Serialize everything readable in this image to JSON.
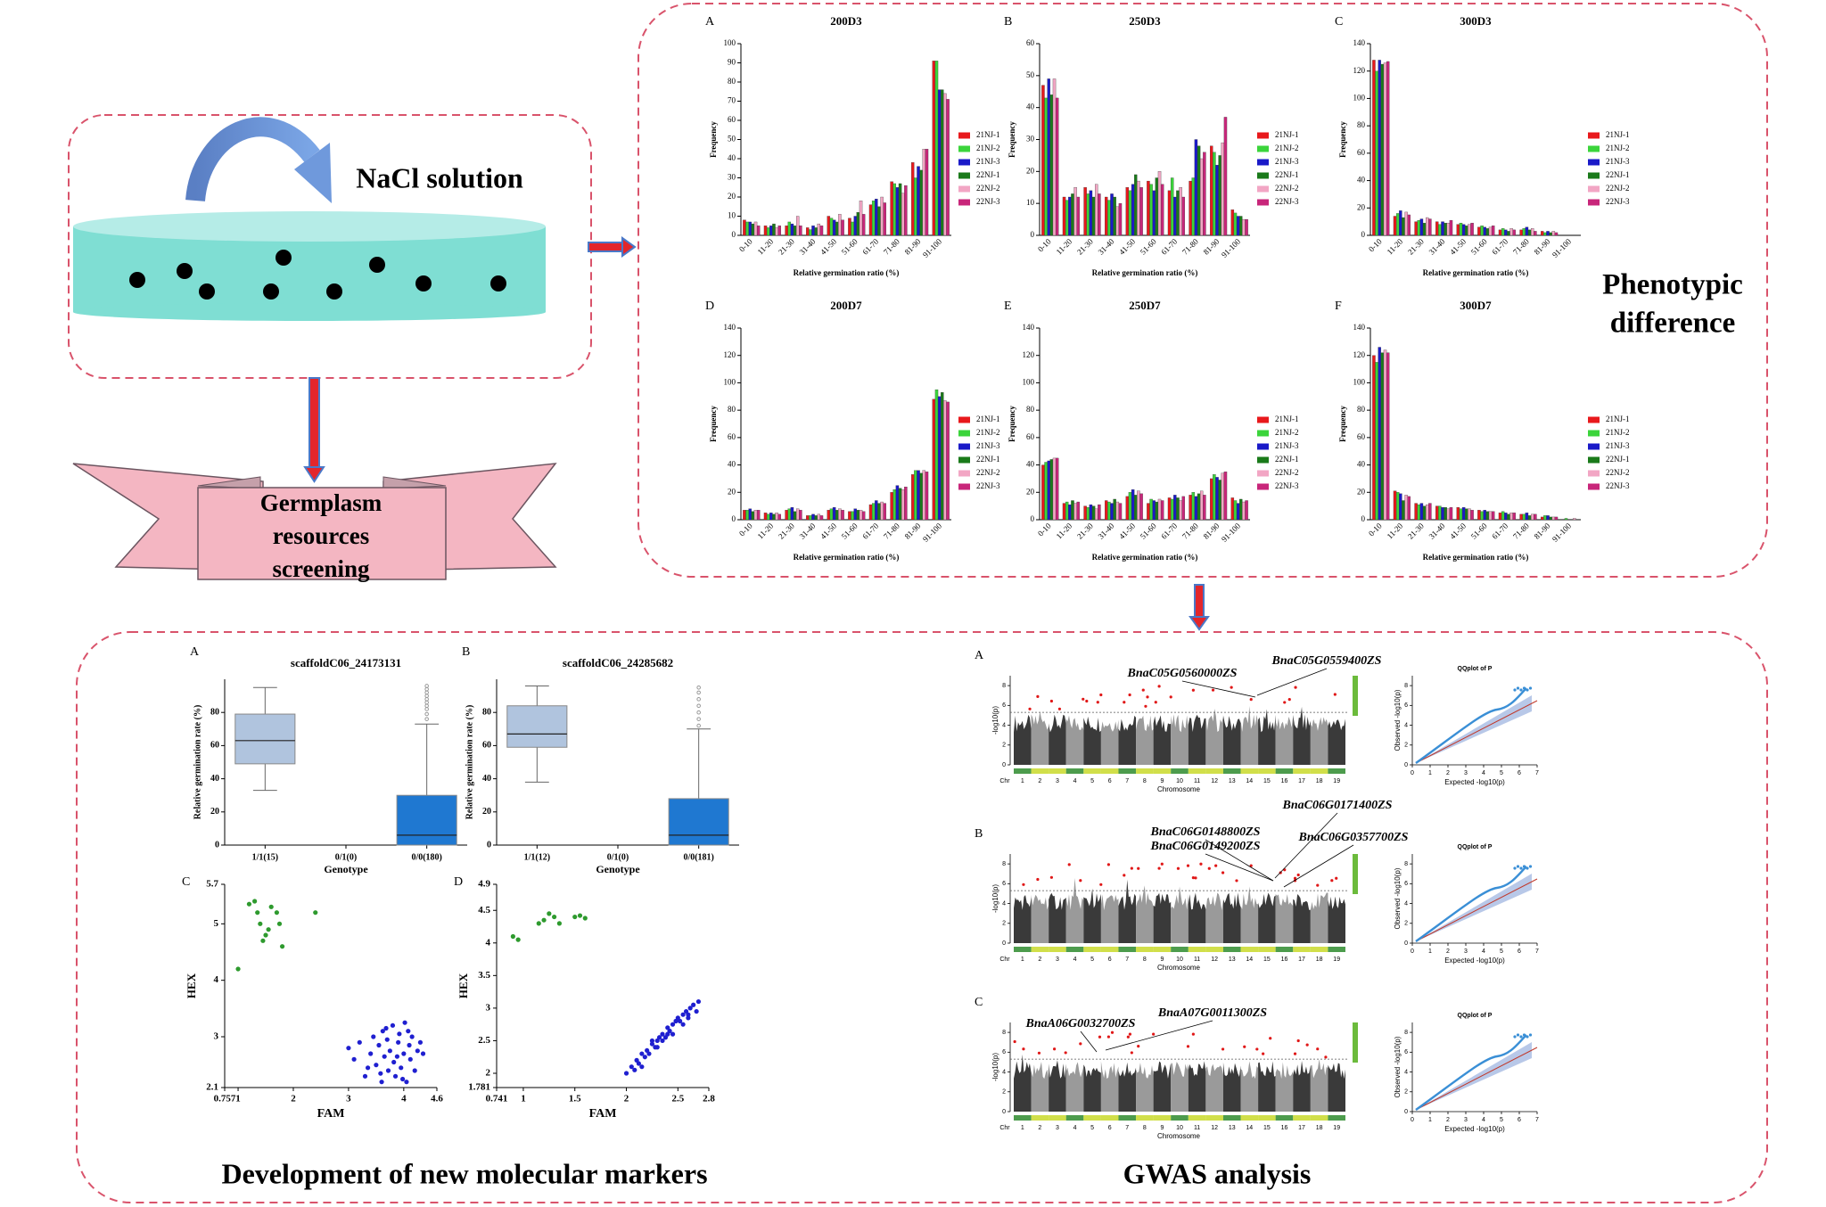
{
  "nacl_label": "NaCl solution",
  "germplasm_lines": [
    "Germplasm",
    "resources",
    "screening"
  ],
  "phenotypic": {
    "heading": [
      "Phenotypic",
      "difference"
    ],
    "x_label": "Relative germination ratio (%)",
    "y_label": "Frequency",
    "categories": [
      "0-10",
      "11-20",
      "21-30",
      "31-40",
      "41-50",
      "51-60",
      "61-70",
      "71-80",
      "81-90",
      "91-100"
    ],
    "legend": [
      {
        "name": "21NJ-1",
        "color": "#e8191c"
      },
      {
        "name": "21NJ-2",
        "color": "#3bd43b"
      },
      {
        "name": "21NJ-3",
        "color": "#1a1ac8"
      },
      {
        "name": "22NJ-1",
        "color": "#1a7a1a"
      },
      {
        "name": "22NJ-2",
        "color": "#f2a6c4"
      },
      {
        "name": "22NJ-3",
        "color": "#c8267a"
      }
    ],
    "panels": [
      {
        "letter": "A",
        "title": "200D3",
        "ylim": [
          0,
          100
        ],
        "yticks": [
          0,
          10,
          20,
          30,
          40,
          50,
          60,
          70,
          80,
          90,
          100
        ],
        "values": [
          [
            8,
            5,
            5,
            4,
            10,
            9,
            16,
            28,
            38,
            91
          ],
          [
            7,
            4,
            7,
            3,
            9,
            7,
            18,
            27,
            30,
            91
          ],
          [
            7,
            5,
            6,
            5,
            8,
            10,
            19,
            25,
            36,
            76
          ],
          [
            6,
            6,
            5,
            4,
            7,
            12,
            15,
            27,
            34,
            76
          ],
          [
            7,
            4,
            10,
            6,
            11,
            18,
            20,
            22,
            45,
            74
          ],
          [
            5,
            5,
            5,
            5,
            8,
            11,
            17,
            26,
            45,
            71
          ]
        ]
      },
      {
        "letter": "B",
        "title": "250D3",
        "ylim": [
          0,
          60
        ],
        "yticks": [
          0,
          10,
          20,
          30,
          40,
          50,
          60
        ],
        "values": [
          [
            47,
            12,
            15,
            12,
            15,
            17,
            14,
            17,
            28,
            8
          ],
          [
            43,
            11,
            13,
            11,
            14,
            16,
            18,
            18,
            26,
            7
          ],
          [
            49,
            12,
            14,
            13,
            16,
            14,
            12,
            30,
            22,
            6
          ],
          [
            44,
            13,
            12,
            12,
            19,
            18,
            14,
            28,
            25,
            6
          ],
          [
            49,
            15,
            16,
            9,
            17,
            20,
            15,
            24,
            29,
            5
          ],
          [
            43,
            12,
            13,
            10,
            15,
            16,
            12,
            26,
            37,
            5
          ]
        ]
      },
      {
        "letter": "C",
        "title": "300D3",
        "ylim": [
          0,
          140
        ],
        "yticks": [
          0,
          20,
          40,
          60,
          80,
          100,
          120,
          140
        ],
        "values": [
          [
            128,
            14,
            10,
            10,
            8,
            6,
            4,
            4,
            3,
            0
          ],
          [
            120,
            16,
            11,
            8,
            9,
            7,
            5,
            5,
            2,
            0
          ],
          [
            128,
            18,
            12,
            10,
            8,
            6,
            4,
            6,
            3,
            0
          ],
          [
            125,
            13,
            9,
            9,
            7,
            5,
            3,
            4,
            2,
            0
          ],
          [
            126,
            17,
            13,
            9,
            8,
            6,
            5,
            5,
            3,
            0
          ],
          [
            127,
            15,
            12,
            11,
            9,
            7,
            4,
            3,
            2,
            0
          ]
        ]
      },
      {
        "letter": "D",
        "title": "200D7",
        "ylim": [
          0,
          140
        ],
        "yticks": [
          0,
          20,
          40,
          60,
          80,
          100,
          120,
          140
        ],
        "values": [
          [
            7,
            5,
            7,
            3,
            7,
            6,
            11,
            20,
            33,
            88
          ],
          [
            7,
            4,
            8,
            3,
            8,
            6,
            12,
            22,
            36,
            95
          ],
          [
            8,
            5,
            9,
            4,
            9,
            8,
            14,
            25,
            36,
            90
          ],
          [
            6,
            4,
            6,
            3,
            7,
            7,
            12,
            23,
            34,
            93
          ],
          [
            7,
            5,
            8,
            4,
            8,
            7,
            13,
            22,
            36,
            87
          ],
          [
            7,
            4,
            7,
            3,
            7,
            6,
            12,
            24,
            35,
            86
          ]
        ]
      },
      {
        "letter": "E",
        "title": "250D7",
        "ylim": [
          0,
          140
        ],
        "yticks": [
          0,
          20,
          40,
          60,
          80,
          100,
          120,
          140
        ],
        "values": [
          [
            40,
            12,
            10,
            14,
            17,
            12,
            16,
            18,
            30,
            16
          ],
          [
            42,
            13,
            9,
            13,
            20,
            15,
            15,
            20,
            33,
            14
          ],
          [
            43,
            11,
            11,
            12,
            22,
            14,
            18,
            17,
            31,
            12
          ],
          [
            44,
            14,
            10,
            15,
            18,
            13,
            16,
            19,
            29,
            15
          ],
          [
            45,
            12,
            8,
            13,
            21,
            15,
            14,
            21,
            34,
            13
          ],
          [
            45,
            13,
            11,
            12,
            19,
            14,
            17,
            18,
            35,
            14
          ]
        ]
      },
      {
        "letter": "F",
        "title": "300D7",
        "ylim": [
          0,
          140
        ],
        "yticks": [
          0,
          20,
          40,
          60,
          80,
          100,
          120,
          140
        ],
        "values": [
          [
            120,
            21,
            12,
            10,
            9,
            7,
            5,
            4,
            2,
            0
          ],
          [
            115,
            20,
            11,
            10,
            8,
            6,
            6,
            4,
            3,
            1
          ],
          [
            126,
            19,
            12,
            9,
            9,
            7,
            5,
            5,
            3,
            0
          ],
          [
            122,
            14,
            10,
            9,
            8,
            6,
            4,
            3,
            2,
            0
          ],
          [
            124,
            18,
            11,
            8,
            8,
            6,
            5,
            4,
            2,
            1
          ],
          [
            122,
            17,
            12,
            9,
            7,
            6,
            5,
            4,
            2,
            0
          ]
        ]
      }
    ]
  },
  "markers": {
    "heading": "Development of new molecular markers",
    "boxplots": [
      {
        "letter": "A",
        "title": "scaffoldC06_24173131",
        "x_label": "Genotype",
        "y_label": "Relative germination rate (%)",
        "ylim": [
          0,
          100
        ],
        "yticks": [
          0,
          20,
          40,
          60,
          80
        ],
        "categories": [
          "1/1(15)",
          "0/1(0)",
          "0/0(180)"
        ],
        "boxes": [
          {
            "min": 33,
            "q1": 49,
            "median": 63,
            "q3": 79,
            "max": 95,
            "outliers": []
          },
          null,
          {
            "min": 0,
            "q1": 0,
            "median": 6,
            "q3": 30,
            "max": 73,
            "outliers": [
              76,
              79,
              82,
              84,
              86,
              88,
              90,
              92,
              94,
              96
            ]
          }
        ]
      },
      {
        "letter": "B",
        "title": "scaffoldC06_24285682",
        "x_label": "Genotype",
        "y_label": "Relative germination rate (%)",
        "ylim": [
          0,
          100
        ],
        "yticks": [
          0,
          20,
          40,
          60,
          80
        ],
        "categories": [
          "1/1(12)",
          "0/1(0)",
          "0/0(181)"
        ],
        "boxes": [
          {
            "min": 38,
            "q1": 59,
            "median": 67,
            "q3": 84,
            "max": 96,
            "outliers": []
          },
          null,
          {
            "min": 0,
            "q1": 0,
            "median": 6,
            "q3": 28,
            "max": 70,
            "outliers": [
              72,
              76,
              80,
              84,
              88,
              92,
              95
            ]
          }
        ]
      }
    ],
    "scatters": [
      {
        "letter": "C",
        "x_label": "FAM",
        "y_label": "HEX",
        "xlim": [
          0.757,
          4.6
        ],
        "xticks": [
          0.757,
          1,
          2,
          3,
          4,
          4.6
        ],
        "ylim": [
          2.1,
          5.7
        ],
        "yticks": [
          2.1,
          3,
          4,
          5,
          5.7
        ],
        "groups": [
          {
            "color": "#2e9a2e",
            "x": [
              1.2,
              1.3,
              1.35,
              1.4,
              1.5,
              1.55,
              1.6,
              1.7,
              1.75,
              1.8,
              2.4,
              1.45,
              1.0
            ],
            "y": [
              5.35,
              5.4,
              5.2,
              5.0,
              4.8,
              4.9,
              5.3,
              5.2,
              5.0,
              4.6,
              5.2,
              4.7,
              4.2
            ]
          },
          {
            "color": "#1f1fd0",
            "x": [
              3.0,
              3.1,
              3.2,
              3.3,
              3.4,
              3.45,
              3.5,
              3.55,
              3.6,
              3.62,
              3.65,
              3.7,
              3.72,
              3.75,
              3.8,
              3.82,
              3.85,
              3.9,
              3.92,
              3.95,
              4.0,
              4.02,
              4.05,
              4.1,
              4.12,
              4.15,
              4.2,
              4.25,
              4.3,
              4.35,
              3.58,
              3.68,
              3.88,
              3.98,
              4.08,
              3.35
            ],
            "y": [
              2.8,
              2.6,
              2.9,
              2.3,
              2.7,
              3.0,
              2.5,
              2.85,
              2.2,
              3.1,
              2.65,
              2.95,
              2.4,
              2.75,
              3.2,
              2.55,
              2.3,
              2.9,
              3.05,
              2.45,
              2.7,
              3.25,
              2.2,
              2.85,
              2.6,
              3.0,
              2.4,
              2.75,
              2.9,
              2.7,
              2.35,
              3.15,
              2.65,
              2.25,
              3.1,
              2.45
            ]
          }
        ]
      },
      {
        "letter": "D",
        "x_label": "FAM",
        "y_label": "HEX",
        "xlim": [
          0.741,
          2.8
        ],
        "xticks": [
          0.741,
          1,
          1.5,
          2,
          2.5,
          2.8
        ],
        "ylim": [
          1.781,
          4.9
        ],
        "yticks": [
          1.781,
          2,
          2.5,
          3,
          3.5,
          4,
          4.5,
          4.9
        ],
        "groups": [
          {
            "color": "#2e9a2e",
            "x": [
              0.9,
              0.95,
              1.15,
              1.2,
              1.25,
              1.3,
              1.35,
              1.5,
              1.55,
              1.6
            ],
            "y": [
              4.1,
              4.05,
              4.3,
              4.35,
              4.45,
              4.4,
              4.3,
              4.4,
              4.42,
              4.38
            ]
          },
          {
            "color": "#1f1fd0",
            "x": [
              2.0,
              2.05,
              2.08,
              2.1,
              2.12,
              2.15,
              2.18,
              2.2,
              2.22,
              2.25,
              2.28,
              2.3,
              2.32,
              2.35,
              2.38,
              2.4,
              2.42,
              2.45,
              2.48,
              2.5,
              2.52,
              2.55,
              2.58,
              2.6,
              2.62,
              2.65,
              2.68,
              2.7,
              2.15,
              2.3,
              2.45,
              2.6,
              2.25,
              2.4,
              2.55,
              2.35
            ],
            "y": [
              2.0,
              2.1,
              2.05,
              2.2,
              2.15,
              2.3,
              2.25,
              2.35,
              2.3,
              2.45,
              2.4,
              2.5,
              2.55,
              2.6,
              2.55,
              2.7,
              2.65,
              2.75,
              2.8,
              2.85,
              2.8,
              2.9,
              2.95,
              2.9,
              3.0,
              3.05,
              2.95,
              3.1,
              2.1,
              2.4,
              2.6,
              2.85,
              2.5,
              2.6,
              2.75,
              2.5
            ]
          }
        ]
      }
    ]
  },
  "gwas": {
    "heading": "GWAS analysis",
    "x_label": "Chromosome",
    "y_label": "-log10(p)",
    "ylim": [
      0,
      9
    ],
    "yticks": [
      0,
      2,
      4,
      6,
      8
    ],
    "threshold": 5.3,
    "chromosomes": [
      "Chr",
      "1",
      "2",
      "3",
      "4",
      "5",
      "6",
      "7",
      "8",
      "9",
      "10",
      "11",
      "12",
      "13",
      "14",
      "15",
      "16",
      "17",
      "18",
      "19"
    ],
    "qq_title": "QQplot of P",
    "qq_x_label": "Expected -log10(p)",
    "qq_y_label": "Observed -log10(p)",
    "qq_xticks": [
      0,
      1,
      2,
      3,
      4,
      5,
      6,
      7
    ],
    "qq_yticks": [
      0,
      2,
      4,
      6,
      8
    ],
    "panels": [
      {
        "letter": "A",
        "annotations": [
          "BnaC05G0560000ZS",
          "BnaC05G0559400ZS"
        ]
      },
      {
        "letter": "B",
        "annotations": [
          "BnaC06G0171400ZS",
          "BnaC06G0148800ZS",
          "BnaC06G0149200ZS",
          "BnaC06G0357700ZS"
        ]
      },
      {
        "letter": "C",
        "annotations": [
          "BnaA06G0032700ZS",
          "BnaA07G0011300ZS"
        ]
      }
    ]
  }
}
